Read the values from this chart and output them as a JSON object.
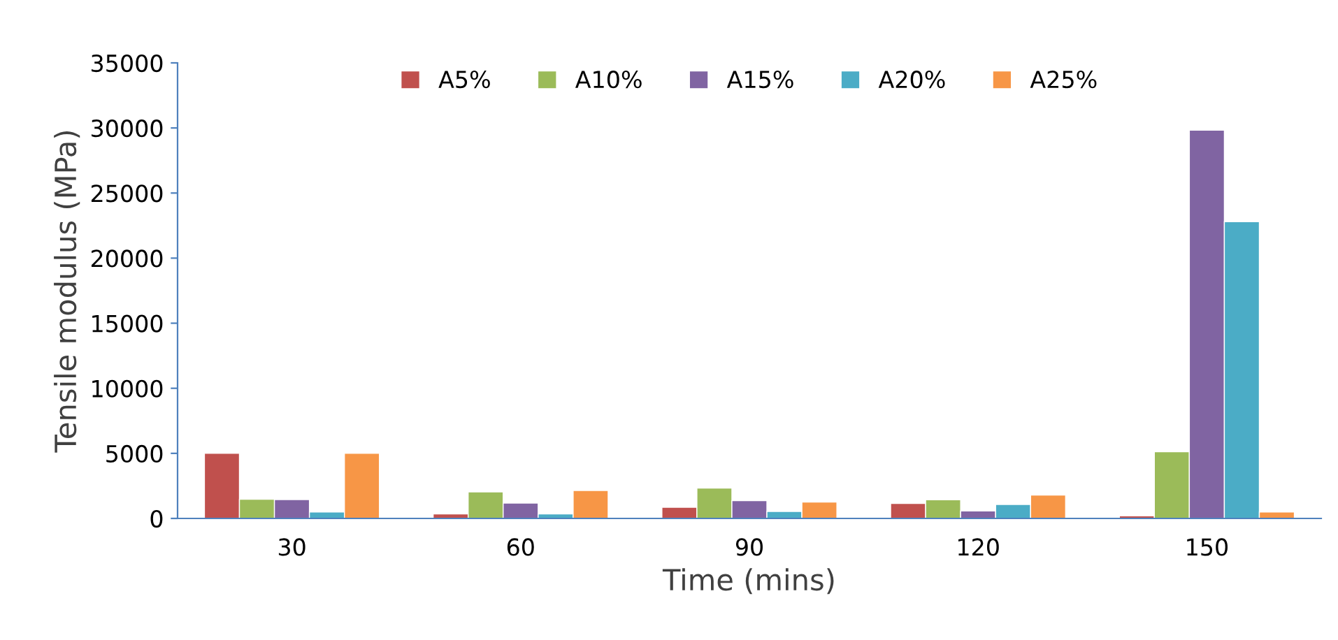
{
  "chart_data": {
    "type": "bar",
    "xlabel": "Time (mins)",
    "ylabel": "Tensile modulus (MPa)",
    "categories": [
      "30",
      "60",
      "90",
      "120",
      "150"
    ],
    "series": [
      {
        "name": "A5%",
        "color": "#c0504d",
        "values": [
          5000,
          350,
          860,
          1150,
          200
        ]
      },
      {
        "name": "A10%",
        "color": "#9bbb59",
        "values": [
          1470,
          2040,
          2330,
          1430,
          5120
        ]
      },
      {
        "name": "A15%",
        "color": "#8064a2",
        "values": [
          1450,
          1180,
          1360,
          570,
          29830
        ]
      },
      {
        "name": "A20%",
        "color": "#4bacc6",
        "values": [
          500,
          350,
          540,
          1070,
          22800
        ]
      },
      {
        "name": "A25%",
        "color": "#f79646",
        "values": [
          5000,
          2150,
          1260,
          1790,
          500
        ]
      }
    ],
    "ylim": [
      0,
      35000
    ],
    "yticks": [
      0,
      5000,
      10000,
      15000,
      20000,
      25000,
      30000,
      35000
    ],
    "grid": false,
    "legend": "top"
  }
}
